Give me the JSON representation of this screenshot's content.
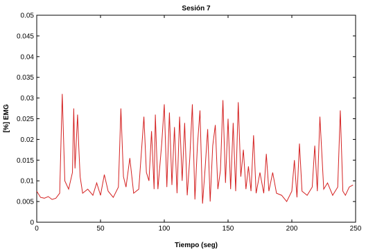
{
  "chart_data": {
    "type": "line",
    "title": "Sesión 7",
    "xlabel": "Tiempo (seg)",
    "ylabel": "[%] EMG",
    "xlim": [
      0,
      250
    ],
    "ylim": [
      0,
      0.05
    ],
    "x_ticks": [
      0,
      50,
      100,
      150,
      200,
      250
    ],
    "x_tick_labels": [
      "0",
      "50",
      "100",
      "150",
      "200",
      "250"
    ],
    "y_ticks": [
      0,
      0.005,
      0.01,
      0.015,
      0.02,
      0.025,
      0.03,
      0.035,
      0.04,
      0.045,
      0.05
    ],
    "y_tick_labels": [
      "0",
      "0.005",
      "0.01",
      "0.015",
      "0.02",
      "0.025",
      "0.03",
      "0.035",
      "0.04",
      "0.045",
      "0.05"
    ],
    "grid": false,
    "line_color": "#d42020",
    "series": [
      {
        "x": [
          0,
          3,
          6,
          9,
          12,
          15,
          18,
          20,
          22,
          25,
          28,
          29,
          30,
          32,
          33,
          34,
          36,
          40,
          44,
          47,
          50,
          53,
          56,
          60,
          64,
          66,
          68,
          70,
          73,
          76,
          80,
          84,
          86,
          88,
          90,
          92,
          93,
          95,
          98,
          100,
          102,
          104,
          106,
          108,
          110,
          112,
          114,
          116,
          118,
          120,
          122,
          124,
          126,
          128,
          130,
          132,
          134,
          136,
          138,
          140,
          142,
          144,
          146,
          148,
          150,
          152,
          154,
          156,
          158,
          160,
          162,
          164,
          166,
          168,
          170,
          172,
          175,
          178,
          180,
          182,
          185,
          188,
          192,
          196,
          200,
          202,
          204,
          206,
          208,
          212,
          216,
          218,
          220,
          222,
          225,
          228,
          232,
          236,
          238,
          240,
          242,
          245,
          248
        ],
        "values": [
          0.0075,
          0.006,
          0.0058,
          0.0062,
          0.0055,
          0.0058,
          0.007,
          0.031,
          0.01,
          0.008,
          0.012,
          0.0275,
          0.013,
          0.026,
          0.018,
          0.011,
          0.007,
          0.008,
          0.0065,
          0.0095,
          0.0065,
          0.0115,
          0.0075,
          0.006,
          0.0085,
          0.0275,
          0.011,
          0.0085,
          0.0155,
          0.007,
          0.008,
          0.0255,
          0.012,
          0.01,
          0.022,
          0.008,
          0.026,
          0.008,
          0.019,
          0.0285,
          0.0085,
          0.0265,
          0.009,
          0.023,
          0.007,
          0.0255,
          0.01,
          0.024,
          0.0065,
          0.0155,
          0.0285,
          0.0055,
          0.0185,
          0.027,
          0.0045,
          0.013,
          0.0225,
          0.005,
          0.0185,
          0.0235,
          0.008,
          0.0125,
          0.0295,
          0.0095,
          0.025,
          0.008,
          0.024,
          0.0075,
          0.029,
          0.011,
          0.0175,
          0.008,
          0.0135,
          0.0075,
          0.021,
          0.007,
          0.012,
          0.007,
          0.0165,
          0.0075,
          0.012,
          0.007,
          0.0065,
          0.005,
          0.0075,
          0.015,
          0.006,
          0.019,
          0.0075,
          0.0065,
          0.0085,
          0.0185,
          0.0075,
          0.0255,
          0.008,
          0.0095,
          0.0065,
          0.0085,
          0.027,
          0.0075,
          0.0065,
          0.0085,
          0.009
        ]
      }
    ]
  }
}
